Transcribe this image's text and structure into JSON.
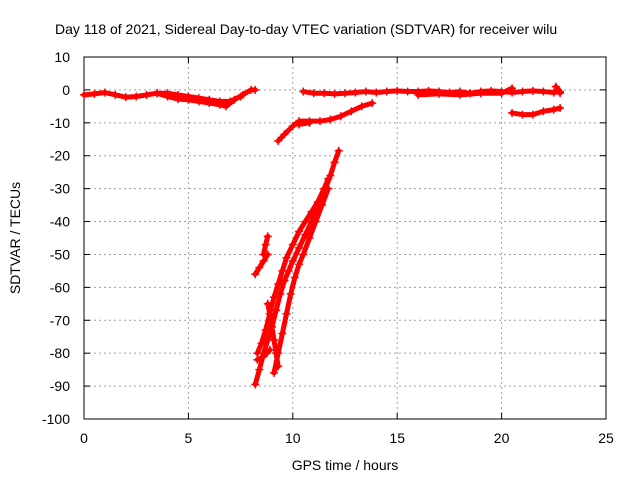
{
  "chart_data": {
    "type": "scatter",
    "title": "Day 118 of 2021, Sidereal Day-to-day VTEC variation (SDTVAR) for receiver wilu",
    "xlabel": "GPS time / hours",
    "ylabel": "SDTVAR / TECUs",
    "xlim": [
      0,
      25
    ],
    "ylim": [
      -100,
      10
    ],
    "xticks": [
      "0",
      "5",
      "10",
      "15",
      "20",
      "25"
    ],
    "yticks": [
      "10",
      "0",
      "-10",
      "-20",
      "-30",
      "-40",
      "-50",
      "-60",
      "-70",
      "-80",
      "-90",
      "-100"
    ],
    "grid": true,
    "color": "#ff0000",
    "marker": "plus",
    "segments": [
      [
        [
          0.0,
          -1.5
        ],
        [
          0.5,
          -1.2
        ],
        [
          1.0,
          -0.8
        ],
        [
          1.5,
          -1.5
        ],
        [
          2.0,
          -2.2
        ],
        [
          2.5,
          -2.0
        ],
        [
          3.0,
          -1.5
        ],
        [
          3.5,
          -1.0
        ],
        [
          4.0,
          -2.0
        ],
        [
          4.5,
          -2.8
        ],
        [
          5.0,
          -3.0
        ],
        [
          5.5,
          -3.5
        ],
        [
          6.0,
          -4.0
        ],
        [
          6.5,
          -4.5
        ],
        [
          6.8,
          -5.0
        ],
        [
          7.2,
          -3.0
        ],
        [
          7.6,
          -1.5
        ],
        [
          8.0,
          0.0
        ],
        [
          8.2,
          0.0
        ]
      ],
      [
        [
          3.5,
          -1.0
        ],
        [
          4.0,
          -1.0
        ],
        [
          4.5,
          -1.5
        ],
        [
          5.0,
          -2.0
        ],
        [
          5.5,
          -2.5
        ],
        [
          6.0,
          -3.0
        ],
        [
          6.5,
          -3.5
        ],
        [
          7.0,
          -3.5
        ],
        [
          7.5,
          -2.0
        ]
      ],
      [
        [
          10.5,
          -0.5
        ],
        [
          11.0,
          -1.0
        ],
        [
          11.5,
          -1.0
        ],
        [
          12.0,
          -1.2
        ],
        [
          12.5,
          -1.0
        ],
        [
          13.0,
          -0.8
        ],
        [
          13.5,
          -0.5
        ],
        [
          14.0,
          -0.8
        ],
        [
          14.5,
          -0.5
        ],
        [
          15.0,
          -0.3
        ],
        [
          15.5,
          -0.5
        ],
        [
          16.0,
          -0.5
        ],
        [
          16.5,
          -0.3
        ],
        [
          17.0,
          -0.5
        ],
        [
          17.5,
          -0.8
        ],
        [
          18.0,
          -0.5
        ],
        [
          18.5,
          -1.0
        ],
        [
          19.0,
          -0.5
        ],
        [
          19.5,
          -0.3
        ],
        [
          20.0,
          -0.5
        ],
        [
          20.5,
          -0.8
        ],
        [
          21.0,
          -0.5
        ],
        [
          21.5,
          -0.3
        ],
        [
          22.0,
          -0.5
        ],
        [
          22.5,
          -0.8
        ],
        [
          22.8,
          -0.5
        ]
      ],
      [
        [
          16.0,
          -1.5
        ],
        [
          17.0,
          -1.2
        ],
        [
          18.0,
          -1.5
        ],
        [
          19.0,
          -1.0
        ],
        [
          20.0,
          -1.0
        ],
        [
          20.5,
          0.5
        ]
      ],
      [
        [
          22.6,
          1.0
        ],
        [
          22.7,
          0.0
        ],
        [
          22.8,
          -1.0
        ]
      ],
      [
        [
          9.3,
          -15.5
        ],
        [
          9.6,
          -13.5
        ],
        [
          10.0,
          -11.0
        ],
        [
          10.3,
          -9.5
        ],
        [
          10.8,
          -9.5
        ],
        [
          11.3,
          -9.5
        ],
        [
          11.8,
          -9.0
        ],
        [
          12.3,
          -8.0
        ],
        [
          12.8,
          -6.5
        ],
        [
          13.3,
          -5.0
        ],
        [
          13.8,
          -4.0
        ]
      ],
      [
        [
          10.3,
          -10.5
        ],
        [
          10.8,
          -10.0
        ]
      ],
      [
        [
          20.5,
          -7.0
        ],
        [
          21.0,
          -7.5
        ],
        [
          21.5,
          -7.5
        ],
        [
          22.0,
          -6.5
        ],
        [
          22.5,
          -6.0
        ],
        [
          22.8,
          -5.5
        ]
      ],
      [
        [
          8.2,
          -56.0
        ],
        [
          8.4,
          -54.0
        ],
        [
          8.6,
          -52.0
        ],
        [
          8.8,
          -50.0
        ]
      ],
      [
        [
          8.6,
          -50.0
        ],
        [
          8.7,
          -47.0
        ],
        [
          8.8,
          -44.5
        ]
      ],
      [
        [
          8.2,
          -89.5
        ],
        [
          8.4,
          -85.0
        ],
        [
          8.6,
          -80.0
        ],
        [
          8.8,
          -76.0
        ],
        [
          9.0,
          -72.0
        ],
        [
          9.2,
          -67.0
        ],
        [
          9.4,
          -62.0
        ],
        [
          9.6,
          -58.0
        ],
        [
          9.8,
          -55.0
        ],
        [
          10.0,
          -52.0
        ],
        [
          10.3,
          -48.0
        ],
        [
          10.6,
          -44.0
        ],
        [
          10.9,
          -40.0
        ],
        [
          11.2,
          -36.0
        ],
        [
          11.5,
          -31.0
        ],
        [
          11.8,
          -26.0
        ],
        [
          12.0,
          -22.0
        ],
        [
          12.2,
          -18.5
        ]
      ],
      [
        [
          8.3,
          -80.0
        ],
        [
          8.5,
          -77.0
        ],
        [
          8.7,
          -73.0
        ],
        [
          8.9,
          -68.0
        ],
        [
          9.1,
          -63.0
        ],
        [
          9.3,
          -59.0
        ],
        [
          9.5,
          -55.0
        ],
        [
          9.7,
          -51.0
        ],
        [
          10.0,
          -47.0
        ],
        [
          10.3,
          -43.0
        ],
        [
          10.6,
          -40.0
        ],
        [
          10.9,
          -37.0
        ],
        [
          11.2,
          -34.0
        ],
        [
          11.5,
          -30.0
        ],
        [
          11.7,
          -27.0
        ]
      ],
      [
        [
          9.1,
          -86.0
        ],
        [
          9.3,
          -80.0
        ],
        [
          9.5,
          -74.0
        ],
        [
          9.7,
          -68.0
        ],
        [
          9.9,
          -62.0
        ],
        [
          10.1,
          -57.0
        ],
        [
          10.3,
          -53.0
        ],
        [
          10.5,
          -50.0
        ],
        [
          10.8,
          -45.0
        ],
        [
          11.1,
          -40.0
        ],
        [
          11.4,
          -35.0
        ],
        [
          11.7,
          -30.0
        ]
      ],
      [
        [
          8.8,
          -65.0
        ],
        [
          8.9,
          -68.0
        ],
        [
          9.0,
          -72.0
        ],
        [
          9.1,
          -76.0
        ],
        [
          9.2,
          -80.0
        ],
        [
          9.3,
          -84.0
        ]
      ],
      [
        [
          8.3,
          -82.0
        ],
        [
          8.6,
          -81.0
        ],
        [
          8.9,
          -79.0
        ]
      ]
    ]
  }
}
